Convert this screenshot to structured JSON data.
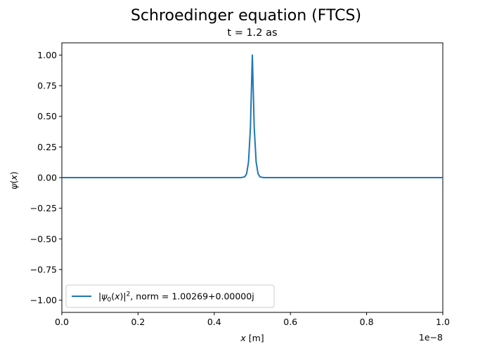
{
  "chart_data": {
    "type": "line",
    "suptitle": "Schroedinger equation (FTCS)",
    "title": "t = 1.2 as",
    "xlabel": "x [m]",
    "ylabel": "ψ(x)",
    "xlim": [
      0,
      1e-08
    ],
    "ylim": [
      -1.1,
      1.1
    ],
    "x_offset_label": "1e−8",
    "x_ticks": [
      0,
      2e-09,
      4e-09,
      6e-09,
      8e-09,
      1e-08
    ],
    "x_tick_labels": [
      "0.0",
      "0.2",
      "0.4",
      "0.6",
      "0.8",
      "1.0"
    ],
    "y_ticks": [
      1.0,
      0.75,
      0.5,
      0.25,
      0.0,
      -0.25,
      -0.5,
      -0.75,
      -1.0
    ],
    "y_tick_labels": [
      "1.00",
      "0.75",
      "0.50",
      "0.25",
      "0.00",
      "−0.25",
      "−0.50",
      "−0.75",
      "−1.00"
    ],
    "grid": false,
    "legend_position": "lower-left",
    "series": [
      {
        "name": "|ψ0(x)|², norm = 1.00269+0.00000j",
        "color": "#1f77b4",
        "x": [
          0,
          4e-09,
          4.6e-09,
          4.7e-09,
          4.8e-09,
          4.85e-09,
          4.9e-09,
          4.95e-09,
          5e-09,
          5.05e-09,
          5.1e-09,
          5.15e-09,
          5.2e-09,
          5.3e-09,
          5.4e-09,
          6e-09,
          1e-08
        ],
        "y": [
          0,
          0,
          0,
          0.0002,
          0.006,
          0.032,
          0.128,
          0.406,
          1.0,
          0.406,
          0.128,
          0.032,
          0.006,
          0.0002,
          0,
          0,
          0
        ]
      }
    ]
  }
}
